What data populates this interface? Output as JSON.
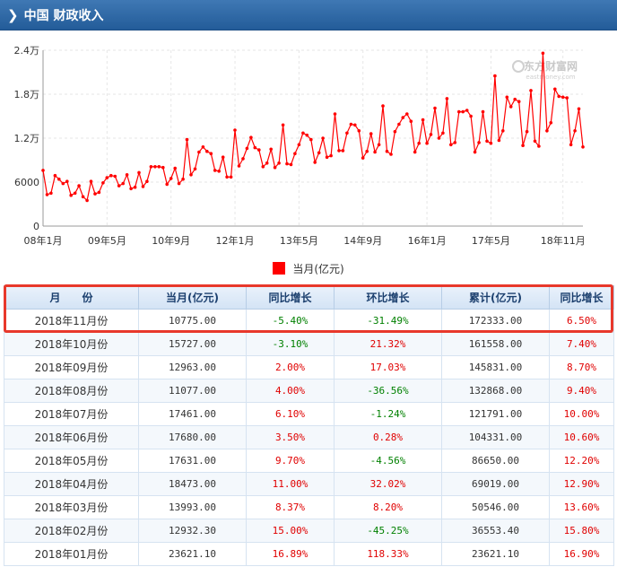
{
  "header": {
    "chevron": "❯",
    "title": "中国 财政收入"
  },
  "watermark": {
    "brand": "东方财富网",
    "url": "eastmoney.com"
  },
  "legend": {
    "label": "当月(亿元)",
    "color": "#ff0000"
  },
  "chart_data": {
    "type": "line",
    "title": "",
    "ylim": [
      0,
      24000
    ],
    "yticks": [
      {
        "value": 0,
        "label": "0"
      },
      {
        "value": 6000,
        "label": "6000"
      },
      {
        "value": 12000,
        "label": "1.2万"
      },
      {
        "value": 18000,
        "label": "1.8万"
      },
      {
        "value": 24000,
        "label": "2.4万"
      }
    ],
    "xticks": [
      {
        "index": 0,
        "label": "08年1月"
      },
      {
        "index": 16,
        "label": "09年5月"
      },
      {
        "index": 32,
        "label": "10年9月"
      },
      {
        "index": 48,
        "label": "12年1月"
      },
      {
        "index": 64,
        "label": "13年5月"
      },
      {
        "index": 80,
        "label": "14年9月"
      },
      {
        "index": 96,
        "label": "16年1月"
      },
      {
        "index": 112,
        "label": "17年5月"
      },
      {
        "index": 130,
        "label": "18年11月"
      }
    ],
    "grid": true,
    "series": [
      {
        "name": "当月(亿元)",
        "color": "#ff0000",
        "values": [
          7600,
          4300,
          4500,
          6900,
          6400,
          5800,
          6100,
          4200,
          4500,
          5500,
          4000,
          3500,
          6100,
          4400,
          4600,
          5900,
          6600,
          6900,
          6800,
          5500,
          5800,
          7000,
          5100,
          5300,
          7300,
          5400,
          6100,
          8100,
          8100,
          8100,
          8000,
          5700,
          6500,
          7900,
          5800,
          6400,
          11800,
          7000,
          7800,
          10100,
          10800,
          10200,
          9900,
          7600,
          7500,
          9400,
          6700,
          6700,
          13100,
          8200,
          9200,
          10600,
          12100,
          10700,
          10400,
          8100,
          8600,
          10500,
          8000,
          8600,
          13800,
          8500,
          8400,
          9900,
          11100,
          12700,
          12400,
          11800,
          8700,
          10000,
          12000,
          9400,
          9600,
          15300,
          10300,
          10300,
          12700,
          13900,
          13800,
          13000,
          9300,
          10200,
          12600,
          10100,
          11100,
          16400,
          10200,
          9800,
          12900,
          13900,
          14800,
          15300,
          14300,
          10100,
          11300,
          14500,
          11300,
          12500,
          16100,
          12000,
          12700,
          17400,
          11100,
          11400,
          15600,
          15600,
          15800,
          15000,
          10100,
          11400,
          15600,
          11600,
          11300,
          20500,
          11700,
          13000,
          17600,
          16300,
          17300,
          17000,
          11000,
          12900,
          18500,
          11600,
          10900,
          23600,
          13000,
          14100,
          18700,
          17700,
          17600,
          17500,
          11100,
          13000,
          16000,
          10800
        ],
        "point_dates": "2008-01 .. 2018-11"
      }
    ]
  },
  "table": {
    "columns": [
      "月　　份",
      "当月(亿元)",
      "同比增长",
      "环比增长",
      "累计(亿元)",
      "同比增长"
    ],
    "rows": [
      {
        "month": "2018年11月份",
        "current": "10775.00",
        "yoy": "-5.40%",
        "mom": "-31.49%",
        "cumulative": "172333.00",
        "cum_yoy": "6.50%"
      },
      {
        "month": "2018年10月份",
        "current": "15727.00",
        "yoy": "-3.10%",
        "mom": "21.32%",
        "cumulative": "161558.00",
        "cum_yoy": "7.40%"
      },
      {
        "month": "2018年09月份",
        "current": "12963.00",
        "yoy": "2.00%",
        "mom": "17.03%",
        "cumulative": "145831.00",
        "cum_yoy": "8.70%"
      },
      {
        "month": "2018年08月份",
        "current": "11077.00",
        "yoy": "4.00%",
        "mom": "-36.56%",
        "cumulative": "132868.00",
        "cum_yoy": "9.40%"
      },
      {
        "month": "2018年07月份",
        "current": "17461.00",
        "yoy": "6.10%",
        "mom": "-1.24%",
        "cumulative": "121791.00",
        "cum_yoy": "10.00%"
      },
      {
        "month": "2018年06月份",
        "current": "17680.00",
        "yoy": "3.50%",
        "mom": "0.28%",
        "cumulative": "104331.00",
        "cum_yoy": "10.60%"
      },
      {
        "month": "2018年05月份",
        "current": "17631.00",
        "yoy": "9.70%",
        "mom": "-4.56%",
        "cumulative": "86650.00",
        "cum_yoy": "12.20%"
      },
      {
        "month": "2018年04月份",
        "current": "18473.00",
        "yoy": "11.00%",
        "mom": "32.02%",
        "cumulative": "69019.00",
        "cum_yoy": "12.90%"
      },
      {
        "month": "2018年03月份",
        "current": "13993.00",
        "yoy": "8.37%",
        "mom": "8.20%",
        "cumulative": "50546.00",
        "cum_yoy": "13.60%"
      },
      {
        "month": "2018年02月份",
        "current": "12932.30",
        "yoy": "15.00%",
        "mom": "-45.25%",
        "cumulative": "36553.40",
        "cum_yoy": "15.80%"
      },
      {
        "month": "2018年01月份",
        "current": "23621.10",
        "yoy": "16.89%",
        "mom": "118.33%",
        "cumulative": "23621.10",
        "cum_yoy": "16.90%"
      }
    ]
  }
}
